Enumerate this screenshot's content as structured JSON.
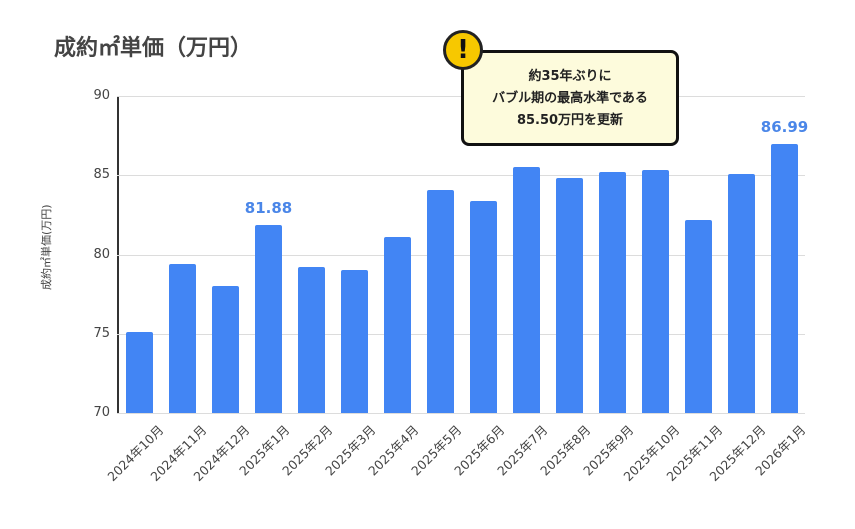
{
  "title": "成約㎡単価（万円）",
  "callout": {
    "icon": "warning-exclamation-icon",
    "lines": [
      "約35年ぶりに",
      "バブル期の最高水準である",
      "85.50万円を更新"
    ]
  },
  "colors": {
    "bar": "#4285f4",
    "label": "#4a86e8",
    "callout_bg": "#fdfbdc",
    "warning": "#f7c800"
  },
  "chart_data": {
    "type": "bar",
    "title": "成約㎡単価（万円）",
    "xlabel": "",
    "ylabel": "成約㎡単価(万円)",
    "ylim": [
      70,
      90
    ],
    "yticks": [
      70,
      75,
      80,
      85,
      90
    ],
    "grid": true,
    "categories": [
      "2024年10月",
      "2024年11月",
      "2024年12月",
      "2025年1月",
      "2025年2月",
      "2025年3月",
      "2025年4月",
      "2025年5月",
      "2025年6月",
      "2025年7月",
      "2025年8月",
      "2025年9月",
      "2025年10月",
      "2025年11月",
      "2025年12月",
      "2026年1月"
    ],
    "values": [
      75.1,
      79.4,
      78.0,
      81.88,
      79.2,
      79.0,
      81.1,
      84.1,
      83.4,
      85.5,
      84.8,
      85.2,
      85.3,
      82.2,
      85.1,
      86.99
    ],
    "data_labels": [
      {
        "category": "2025年1月",
        "text": "81.88"
      },
      {
        "category": "2026年1月",
        "text": "86.99"
      }
    ],
    "annotations": [
      "約35年ぶりに バブル期の最高水準である 85.50万円を更新"
    ]
  }
}
